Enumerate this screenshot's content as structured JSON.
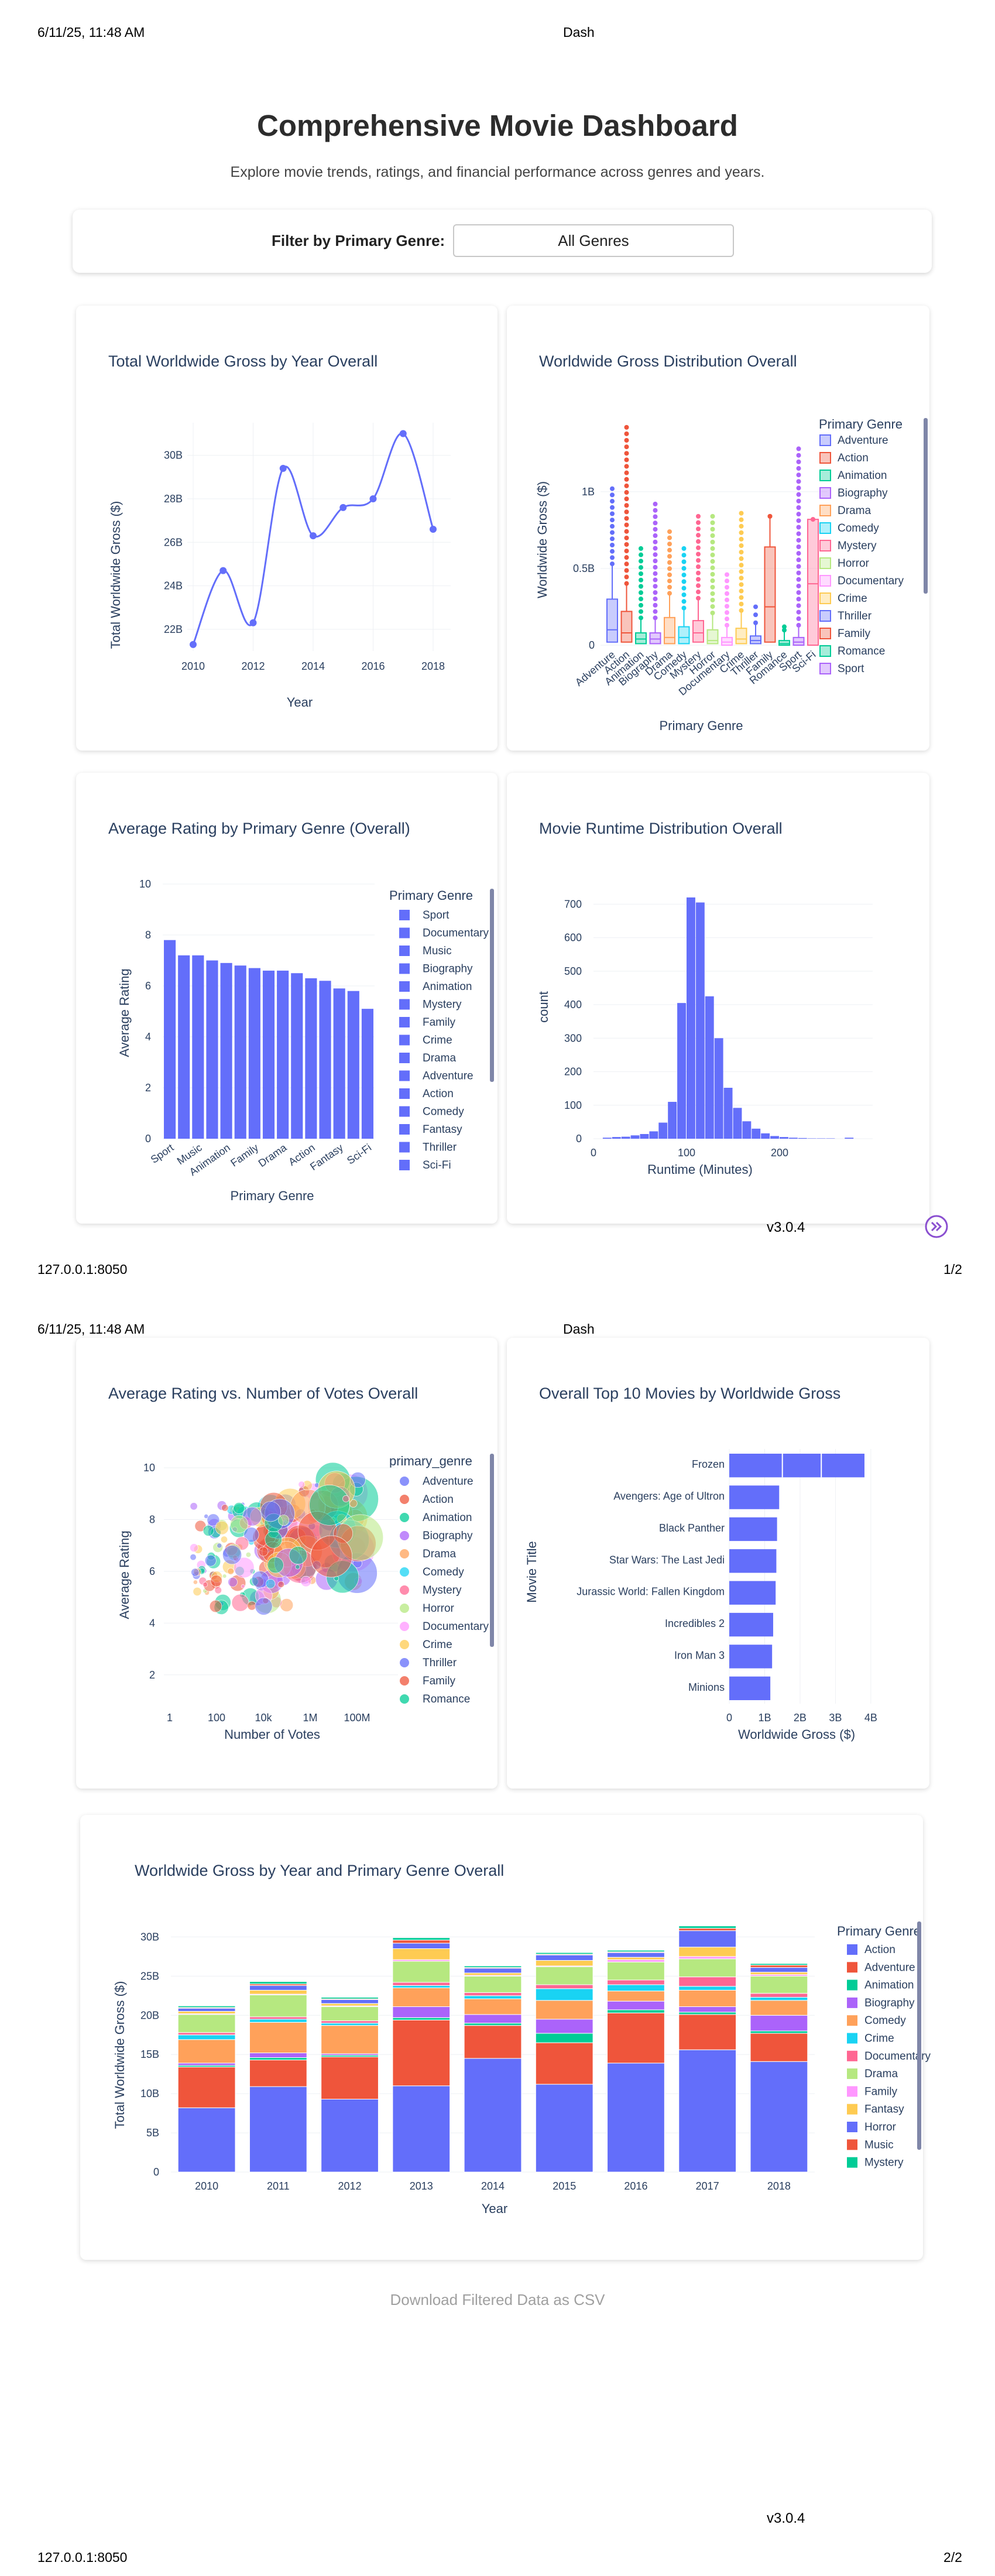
{
  "print_header": {
    "datetime": "6/11/25, 11:48 AM",
    "title": "Dash"
  },
  "print_footer": {
    "url": "127.0.0.1:8050",
    "page1": "1/2",
    "page2": "2/2"
  },
  "version": "v3.0.4",
  "page": {
    "title": "Comprehensive Movie Dashboard",
    "subtitle": "Explore movie trends, ratings, and financial performance across genres and years."
  },
  "filter": {
    "label": "Filter by Primary Genre:",
    "value": "All Genres"
  },
  "download": {
    "label": "Download Filtered Data as CSV"
  },
  "charts": {
    "gross_by_year": {
      "title": "Total Worldwide Gross by Year Overall",
      "xlabel": "Year",
      "ylabel": "Total Worldwide Gross ($)",
      "xticks": [
        "2010",
        "2012",
        "2014",
        "2016",
        "2018"
      ],
      "yticks": [
        "22B",
        "24B",
        "26B",
        "28B",
        "30B"
      ]
    },
    "gross_dist": {
      "title": "Worldwide Gross Distribution Overall",
      "xlabel": "Primary Genre",
      "ylabel": "Worldwide Gross ($)",
      "yticks": [
        "0",
        "0.5B",
        "1B"
      ],
      "legend_title": "Primary Genre"
    },
    "avg_rating": {
      "title": "Average Rating by Primary Genre (Overall)",
      "xlabel": "Primary Genre",
      "ylabel": "Average Rating",
      "yticks": [
        "0",
        "2",
        "4",
        "6",
        "8",
        "10"
      ],
      "legend_title": "Primary Genre"
    },
    "runtime": {
      "title": "Movie Runtime Distribution Overall",
      "xlabel": "Runtime (Minutes)",
      "ylabel": "count",
      "xticks": [
        "0",
        "100",
        "200"
      ],
      "yticks": [
        "0",
        "100",
        "200",
        "300",
        "400",
        "500",
        "600",
        "700"
      ]
    },
    "rating_votes": {
      "title": "Average Rating vs. Number of Votes Overall",
      "xlabel": "Number of Votes",
      "ylabel": "Average Rating",
      "xticks": [
        "1",
        "100",
        "10k",
        "1M",
        "100M"
      ],
      "yticks": [
        "2",
        "4",
        "6",
        "8",
        "10"
      ],
      "legend_title": "primary_genre"
    },
    "top10": {
      "title": "Overall Top 10 Movies by Worldwide Gross",
      "xlabel": "Worldwide Gross ($)",
      "ylabel": "Movie Title",
      "xticks": [
        "0",
        "1B",
        "2B",
        "3B",
        "4B"
      ]
    },
    "stacked": {
      "title": "Worldwide Gross by Year and Primary Genre Overall",
      "xlabel": "Year",
      "ylabel": "Total Worldwide Gross ($)",
      "yticks": [
        "0",
        "5B",
        "10B",
        "15B",
        "20B",
        "25B",
        "30B"
      ],
      "legend_title": "Primary Genre"
    }
  },
  "chart_data": [
    {
      "type": "line",
      "title": "Total Worldwide Gross by Year Overall",
      "xlabel": "Year",
      "ylabel": "Total Worldwide Gross ($)",
      "x": [
        2010,
        2011,
        2012,
        2013,
        2014,
        2015,
        2016,
        2017,
        2018
      ],
      "y": [
        21.3,
        24.7,
        22.3,
        29.4,
        26.3,
        27.6,
        28.0,
        31.0,
        26.6
      ],
      "ylim": [
        21,
        31.5
      ],
      "color": "#636efa"
    },
    {
      "type": "box",
      "title": "Worldwide Gross Distribution Overall",
      "xlabel": "Primary Genre",
      "ylabel": "Worldwide Gross ($)",
      "categories": [
        "Adventure",
        "Action",
        "Animation",
        "Biography",
        "Drama",
        "Comedy",
        "Mystery",
        "Horror",
        "Documentary",
        "Crime",
        "Thriller",
        "Family",
        "Romance",
        "Sport",
        "Sci-Fi"
      ],
      "series": [
        {
          "name": "Adventure",
          "color": "#636efa",
          "q1": 0.02,
          "median": 0.1,
          "q3": 0.3,
          "max_outlier": 1.02
        },
        {
          "name": "Action",
          "color": "#ef553b",
          "q1": 0.02,
          "median": 0.08,
          "q3": 0.22,
          "max_outlier": 1.42
        },
        {
          "name": "Animation",
          "color": "#00cc96",
          "q1": 0.01,
          "median": 0.04,
          "q3": 0.08,
          "max_outlier": 0.63
        },
        {
          "name": "Biography",
          "color": "#ab63fa",
          "q1": 0.01,
          "median": 0.04,
          "q3": 0.08,
          "max_outlier": 0.92
        },
        {
          "name": "Drama",
          "color": "#ffa15a",
          "q1": 0.01,
          "median": 0.05,
          "q3": 0.18,
          "max_outlier": 0.74
        },
        {
          "name": "Comedy",
          "color": "#19d3f3",
          "q1": 0.01,
          "median": 0.05,
          "q3": 0.12,
          "max_outlier": 0.63
        },
        {
          "name": "Mystery",
          "color": "#ff6692",
          "q1": 0.02,
          "median": 0.08,
          "q3": 0.16,
          "max_outlier": 0.84
        },
        {
          "name": "Horror",
          "color": "#b6e880",
          "q1": 0.01,
          "median": 0.03,
          "q3": 0.1,
          "max_outlier": 0.84
        },
        {
          "name": "Documentary",
          "color": "#ff97ff",
          "q1": 0.0,
          "median": 0.02,
          "q3": 0.05,
          "max_outlier": 0.46
        },
        {
          "name": "Crime",
          "color": "#fecb52",
          "q1": 0.01,
          "median": 0.04,
          "q3": 0.11,
          "max_outlier": 0.86
        },
        {
          "name": "Thriller",
          "color": "#636efa",
          "q1": 0.01,
          "median": 0.03,
          "q3": 0.06,
          "max_outlier": 0.25
        },
        {
          "name": "Family",
          "color": "#ef553b",
          "q1": 0.02,
          "median": 0.25,
          "q3": 0.64,
          "max_outlier": 0.84
        },
        {
          "name": "Romance",
          "color": "#00cc96",
          "q1": 0.0,
          "median": 0.01,
          "q3": 0.03,
          "max_outlier": 0.12
        },
        {
          "name": "Sport",
          "color": "#ab63fa",
          "q1": 0.0,
          "median": 0.02,
          "q3": 0.05,
          "max_outlier": 1.28
        },
        {
          "name": "Sci-Fi",
          "color": "#ff6692",
          "q1": 0.0,
          "median": 0.4,
          "q3": 0.82,
          "max_outlier": 0.82
        }
      ],
      "ylim": [
        0,
        1.45
      ]
    },
    {
      "type": "bar",
      "title": "Average Rating by Primary Genre (Overall)",
      "xlabel": "Primary Genre",
      "ylabel": "Average Rating",
      "categories": [
        "Sport",
        "Documentary",
        "Music",
        "Biography",
        "Animation",
        "Mystery",
        "Family",
        "Crime",
        "Drama",
        "Adventure",
        "Action",
        "Comedy",
        "Fantasy",
        "Thriller",
        "Sci-Fi"
      ],
      "values": [
        7.8,
        7.2,
        7.2,
        7.0,
        6.9,
        6.8,
        6.7,
        6.6,
        6.6,
        6.5,
        6.3,
        6.2,
        5.9,
        5.8,
        5.1
      ],
      "ylim": [
        0,
        10
      ],
      "color": "#636efa"
    },
    {
      "type": "bar",
      "title": "Movie Runtime Distribution Overall",
      "xlabel": "Runtime (Minutes)",
      "ylabel": "count",
      "x": [
        15,
        25,
        35,
        45,
        55,
        65,
        75,
        85,
        95,
        105,
        115,
        125,
        135,
        145,
        155,
        165,
        175,
        185,
        195,
        205,
        215,
        225,
        235,
        245,
        255,
        265,
        275
      ],
      "values": [
        3,
        5,
        6,
        10,
        14,
        22,
        48,
        110,
        405,
        720,
        705,
        425,
        300,
        152,
        92,
        52,
        30,
        16,
        8,
        5,
        3,
        2,
        1,
        1,
        1,
        0,
        3
      ],
      "xlim": [
        0,
        300
      ],
      "ylim": [
        0,
        760
      ],
      "color": "#636efa"
    },
    {
      "type": "scatter",
      "title": "Average Rating vs. Number of Votes Overall",
      "xlabel": "Number of Votes",
      "ylabel": "Average Rating",
      "x_scale": "log",
      "xlim": [
        1,
        1000000000
      ],
      "ylim": [
        1,
        10.5
      ],
      "series": [
        "Adventure",
        "Action",
        "Animation",
        "Biography",
        "Drama",
        "Comedy",
        "Mystery",
        "Horror",
        "Documentary",
        "Crime",
        "Thriller",
        "Family",
        "Romance"
      ]
    },
    {
      "type": "bar",
      "orientation": "horizontal",
      "title": "Overall Top 10 Movies by Worldwide Gross",
      "xlabel": "Worldwide Gross ($)",
      "ylabel": "Movie Title",
      "categories": [
        "Frozen",
        "Avengers: Age of Ultron",
        "Black Panther",
        "Star Wars: The Last Jedi",
        "Jurassic World: Fallen Kingdom",
        "Incredibles 2",
        "Iron Man 3",
        "Minions"
      ],
      "values": [
        3.82,
        1.41,
        1.35,
        1.33,
        1.31,
        1.24,
        1.21,
        1.16
      ],
      "xlim": [
        0,
        4.3
      ],
      "color": "#636efa"
    },
    {
      "type": "bar",
      "stacked": true,
      "title": "Worldwide Gross by Year and Primary Genre Overall",
      "xlabel": "Year",
      "ylabel": "Total Worldwide Gross ($)",
      "categories": [
        "2010",
        "2011",
        "2012",
        "2013",
        "2014",
        "2015",
        "2016",
        "2017",
        "2018"
      ],
      "series": [
        {
          "name": "Action",
          "color": "#636efa",
          "values": [
            8.2,
            10.9,
            9.3,
            11.0,
            14.5,
            11.2,
            13.9,
            15.6,
            14.1
          ]
        },
        {
          "name": "Adventure",
          "color": "#ef553b",
          "values": [
            5.2,
            3.4,
            5.4,
            8.4,
            4.2,
            5.3,
            6.4,
            4.5,
            3.6
          ]
        },
        {
          "name": "Animation",
          "color": "#00cc96",
          "values": [
            0.2,
            0.3,
            0.2,
            0.3,
            0.3,
            1.2,
            0.4,
            0.3,
            0.3
          ]
        },
        {
          "name": "Biography",
          "color": "#ab63fa",
          "values": [
            0.3,
            0.6,
            0.2,
            1.4,
            1.1,
            1.8,
            1.1,
            0.7,
            2.0
          ]
        },
        {
          "name": "Comedy",
          "color": "#ffa15a",
          "values": [
            3.0,
            3.9,
            3.6,
            2.4,
            2.0,
            2.4,
            1.3,
            2.1,
            1.9
          ]
        },
        {
          "name": "Crime",
          "color": "#19d3f3",
          "values": [
            0.6,
            0.4,
            0.3,
            0.3,
            0.4,
            1.5,
            0.8,
            0.5,
            0.4
          ]
        },
        {
          "name": "Documentary",
          "color": "#ff6692",
          "values": [
            0.3,
            0.3,
            0.3,
            0.4,
            0.4,
            0.5,
            0.6,
            1.2,
            0.5
          ]
        },
        {
          "name": "Drama",
          "color": "#b6e880",
          "values": [
            2.3,
            2.8,
            1.8,
            2.7,
            2.1,
            2.3,
            2.3,
            2.3,
            2.2
          ]
        },
        {
          "name": "Family",
          "color": "#ff97ff",
          "values": [
            0.1,
            0.1,
            0.1,
            0.2,
            0.1,
            0.1,
            0.3,
            0.3,
            0.2
          ]
        },
        {
          "name": "Fantasy",
          "color": "#fecb52",
          "values": [
            0.3,
            0.5,
            0.3,
            1.4,
            0.3,
            0.7,
            0.3,
            1.2,
            0.3
          ]
        },
        {
          "name": "Horror",
          "color": "#636efa",
          "values": [
            0.4,
            0.6,
            0.5,
            0.7,
            0.6,
            0.7,
            0.6,
            2.1,
            0.6
          ]
        },
        {
          "name": "Music",
          "color": "#ef553b",
          "values": [
            0.1,
            0.2,
            0.1,
            0.4,
            0.1,
            0.1,
            0.1,
            0.3,
            0.3
          ]
        },
        {
          "name": "Mystery",
          "color": "#00cc96",
          "values": [
            0.2,
            0.3,
            0.2,
            0.3,
            0.2,
            0.2,
            0.2,
            0.3,
            0.2
          ]
        }
      ],
      "ylim": [
        0,
        31
      ]
    }
  ]
}
